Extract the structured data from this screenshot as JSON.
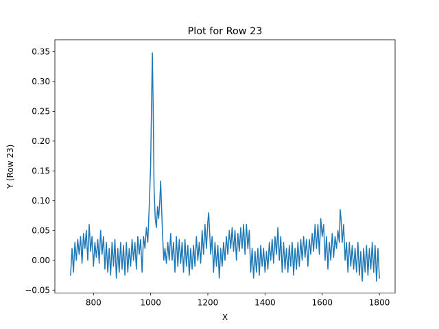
{
  "chart_data": {
    "type": "line",
    "title": "Plot for Row 23",
    "xlabel": "X",
    "ylabel": "Y (Row 23)",
    "xlim": [
      665,
      1855
    ],
    "ylim": [
      -0.055,
      0.37
    ],
    "xticks": [
      800,
      1000,
      1200,
      1400,
      1600,
      1800
    ],
    "xtick_labels": [
      "800",
      "1000",
      "1200",
      "1400",
      "1600",
      "1800"
    ],
    "yticks": [
      -0.05,
      0.0,
      0.05,
      0.1,
      0.15,
      0.2,
      0.25,
      0.3,
      0.35
    ],
    "ytick_labels": [
      "−0.05",
      "0.00",
      "0.05",
      "0.10",
      "0.15",
      "0.20",
      "0.25",
      "0.30",
      "0.35"
    ],
    "grid": false,
    "line_color": "#1f77b4",
    "series": [
      {
        "points": [
          [
            720,
            -0.025
          ],
          [
            725,
            0.02
          ],
          [
            730,
            -0.02
          ],
          [
            735,
            0.03
          ],
          [
            740,
            0.0
          ],
          [
            745,
            0.035
          ],
          [
            750,
            0.01
          ],
          [
            755,
            0.04
          ],
          [
            760,
            -0.005
          ],
          [
            765,
            0.045
          ],
          [
            770,
            0.02
          ],
          [
            775,
            0.05
          ],
          [
            780,
            0.0
          ],
          [
            785,
            0.06
          ],
          [
            790,
            0.015
          ],
          [
            795,
            0.04
          ],
          [
            800,
            -0.01
          ],
          [
            805,
            0.03
          ],
          [
            810,
            0.005
          ],
          [
            815,
            0.035
          ],
          [
            820,
            -0.005
          ],
          [
            825,
            0.05
          ],
          [
            830,
            0.01
          ],
          [
            835,
            0.04
          ],
          [
            840,
            -0.015
          ],
          [
            845,
            0.03
          ],
          [
            850,
            -0.02
          ],
          [
            855,
            0.02
          ],
          [
            860,
            -0.025
          ],
          [
            865,
            0.03
          ],
          [
            870,
            -0.01
          ],
          [
            875,
            0.035
          ],
          [
            880,
            -0.03
          ],
          [
            885,
            0.02
          ],
          [
            890,
            -0.02
          ],
          [
            895,
            0.03
          ],
          [
            900,
            -0.015
          ],
          [
            905,
            0.025
          ],
          [
            910,
            -0.025
          ],
          [
            915,
            0.03
          ],
          [
            920,
            -0.02
          ],
          [
            925,
            0.02
          ],
          [
            930,
            -0.01
          ],
          [
            935,
            0.035
          ],
          [
            940,
            0.0
          ],
          [
            945,
            0.03
          ],
          [
            950,
            -0.015
          ],
          [
            955,
            0.04
          ],
          [
            960,
            0.01
          ],
          [
            965,
            0.035
          ],
          [
            970,
            -0.02
          ],
          [
            975,
            0.04
          ],
          [
            980,
            0.02
          ],
          [
            985,
            0.055
          ],
          [
            990,
            0.03
          ],
          [
            995,
            0.09
          ],
          [
            1000,
            0.16
          ],
          [
            1003,
            0.26
          ],
          [
            1006,
            0.348
          ],
          [
            1009,
            0.25
          ],
          [
            1012,
            0.12
          ],
          [
            1016,
            0.07
          ],
          [
            1020,
            0.055
          ],
          [
            1024,
            0.09
          ],
          [
            1028,
            0.07
          ],
          [
            1032,
            0.1
          ],
          [
            1035,
            0.133
          ],
          [
            1038,
            0.09
          ],
          [
            1042,
            0.04
          ],
          [
            1046,
            0.0
          ],
          [
            1050,
            0.02
          ],
          [
            1055,
            -0.005
          ],
          [
            1060,
            0.03
          ],
          [
            1065,
            0.0
          ],
          [
            1070,
            0.045
          ],
          [
            1075,
            0.0
          ],
          [
            1080,
            0.03
          ],
          [
            1085,
            -0.02
          ],
          [
            1090,
            0.04
          ],
          [
            1095,
            -0.01
          ],
          [
            1100,
            0.035
          ],
          [
            1105,
            -0.005
          ],
          [
            1110,
            0.03
          ],
          [
            1115,
            -0.02
          ],
          [
            1120,
            0.035
          ],
          [
            1125,
            -0.01
          ],
          [
            1130,
            0.025
          ],
          [
            1135,
            -0.025
          ],
          [
            1140,
            0.02
          ],
          [
            1145,
            -0.015
          ],
          [
            1150,
            0.025
          ],
          [
            1155,
            -0.01
          ],
          [
            1160,
            0.04
          ],
          [
            1165,
            0.0
          ],
          [
            1170,
            0.03
          ],
          [
            1175,
            -0.005
          ],
          [
            1180,
            0.05
          ],
          [
            1185,
            0.01
          ],
          [
            1190,
            0.06
          ],
          [
            1195,
            0.02
          ],
          [
            1200,
            0.065
          ],
          [
            1203,
            0.08
          ],
          [
            1206,
            0.05
          ],
          [
            1210,
            0.01
          ],
          [
            1215,
            0.04
          ],
          [
            1220,
            -0.02
          ],
          [
            1225,
            0.03
          ],
          [
            1230,
            -0.01
          ],
          [
            1235,
            0.025
          ],
          [
            1240,
            -0.03
          ],
          [
            1245,
            0.02
          ],
          [
            1250,
            -0.01
          ],
          [
            1255,
            0.03
          ],
          [
            1260,
            0.0
          ],
          [
            1265,
            0.04
          ],
          [
            1270,
            0.01
          ],
          [
            1275,
            0.05
          ],
          [
            1280,
            0.02
          ],
          [
            1285,
            0.055
          ],
          [
            1290,
            0.015
          ],
          [
            1295,
            0.05
          ],
          [
            1300,
            0.0
          ],
          [
            1305,
            0.045
          ],
          [
            1310,
            0.015
          ],
          [
            1315,
            0.055
          ],
          [
            1320,
            0.02
          ],
          [
            1325,
            0.06
          ],
          [
            1330,
            0.01
          ],
          [
            1335,
            0.06
          ],
          [
            1340,
            0.02
          ],
          [
            1345,
            0.05
          ],
          [
            1350,
            -0.02
          ],
          [
            1355,
            0.02
          ],
          [
            1360,
            -0.03
          ],
          [
            1365,
            0.015
          ],
          [
            1370,
            -0.02
          ],
          [
            1375,
            0.02
          ],
          [
            1380,
            -0.025
          ],
          [
            1385,
            0.025
          ],
          [
            1390,
            -0.01
          ],
          [
            1395,
            0.02
          ],
          [
            1400,
            -0.02
          ],
          [
            1405,
            0.015
          ],
          [
            1410,
            -0.015
          ],
          [
            1415,
            0.03
          ],
          [
            1420,
            0.0
          ],
          [
            1425,
            0.035
          ],
          [
            1430,
            -0.005
          ],
          [
            1435,
            0.04
          ],
          [
            1440,
            0.01
          ],
          [
            1445,
            0.055
          ],
          [
            1450,
            0.0
          ],
          [
            1455,
            0.04
          ],
          [
            1460,
            -0.02
          ],
          [
            1465,
            0.03
          ],
          [
            1470,
            -0.015
          ],
          [
            1475,
            0.02
          ],
          [
            1480,
            -0.02
          ],
          [
            1485,
            0.025
          ],
          [
            1490,
            -0.01
          ],
          [
            1495,
            0.03
          ],
          [
            1500,
            -0.025
          ],
          [
            1505,
            0.02
          ],
          [
            1510,
            -0.015
          ],
          [
            1515,
            0.03
          ],
          [
            1520,
            -0.01
          ],
          [
            1525,
            0.035
          ],
          [
            1530,
            0.0
          ],
          [
            1535,
            0.04
          ],
          [
            1540,
            0.005
          ],
          [
            1545,
            0.035
          ],
          [
            1550,
            -0.01
          ],
          [
            1555,
            0.035
          ],
          [
            1560,
            0.01
          ],
          [
            1565,
            0.045
          ],
          [
            1570,
            0.015
          ],
          [
            1575,
            0.06
          ],
          [
            1580,
            0.02
          ],
          [
            1585,
            0.06
          ],
          [
            1590,
            0.01
          ],
          [
            1595,
            0.07
          ],
          [
            1600,
            0.04
          ],
          [
            1605,
            0.06
          ],
          [
            1610,
            0.0
          ],
          [
            1615,
            0.04
          ],
          [
            1620,
            -0.015
          ],
          [
            1625,
            0.03
          ],
          [
            1630,
            0.0
          ],
          [
            1635,
            0.045
          ],
          [
            1640,
            0.005
          ],
          [
            1645,
            0.04
          ],
          [
            1650,
            0.02
          ],
          [
            1655,
            0.05
          ],
          [
            1660,
            0.03
          ],
          [
            1663,
            0.085
          ],
          [
            1666,
            0.07
          ],
          [
            1670,
            0.03
          ],
          [
            1675,
            0.06
          ],
          [
            1680,
            0.0
          ],
          [
            1685,
            0.03
          ],
          [
            1690,
            -0.02
          ],
          [
            1695,
            0.03
          ],
          [
            1700,
            -0.01
          ],
          [
            1705,
            0.025
          ],
          [
            1710,
            -0.015
          ],
          [
            1715,
            0.02
          ],
          [
            1720,
            -0.02
          ],
          [
            1725,
            0.03
          ],
          [
            1730,
            -0.025
          ],
          [
            1735,
            0.015
          ],
          [
            1740,
            -0.035
          ],
          [
            1745,
            0.02
          ],
          [
            1750,
            -0.02
          ],
          [
            1755,
            0.025
          ],
          [
            1760,
            -0.025
          ],
          [
            1765,
            0.02
          ],
          [
            1770,
            -0.015
          ],
          [
            1775,
            0.03
          ],
          [
            1780,
            -0.02
          ],
          [
            1785,
            0.025
          ],
          [
            1790,
            -0.035
          ],
          [
            1795,
            0.02
          ],
          [
            1800,
            -0.03
          ]
        ]
      }
    ]
  }
}
